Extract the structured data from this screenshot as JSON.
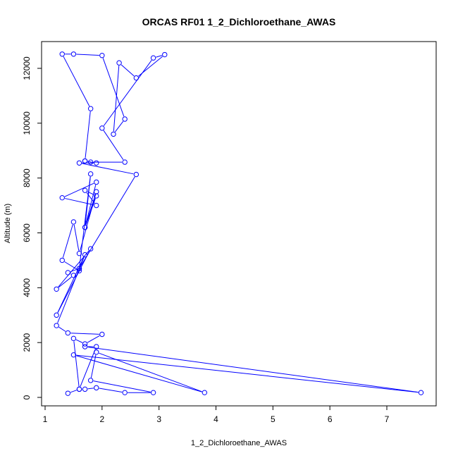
{
  "chart_data": {
    "type": "line",
    "title": "ORCAS RF01 1_2_Dichloroethane_AWAS",
    "xlabel": "1_2_Dichloroethane_AWAS",
    "ylabel": "Altitude (m)",
    "xlim": [
      1,
      7.6
    ],
    "ylim": [
      0,
      12500
    ],
    "xticks": [
      1,
      2,
      3,
      4,
      5,
      6,
      7
    ],
    "yticks": [
      0,
      2000,
      4000,
      6000,
      8000,
      10000,
      12000
    ],
    "grid": false,
    "legend": "none",
    "colors": {
      "series": "#0000ff",
      "axis": "#000000",
      "background": "#ffffff"
    },
    "series": [
      {
        "marker": "open-circle",
        "points": [
          [
            1.4,
            150
          ],
          [
            1.6,
            300
          ],
          [
            1.7,
            300
          ],
          [
            1.9,
            350
          ],
          [
            2.4,
            175
          ],
          [
            2.9,
            175
          ],
          [
            1.8,
            620
          ],
          [
            1.9,
            1650
          ],
          [
            3.8,
            175
          ],
          [
            1.5,
            1550
          ],
          [
            7.6,
            175
          ],
          [
            1.7,
            1850
          ],
          [
            1.9,
            1850
          ],
          [
            1.6,
            300
          ],
          [
            1.5,
            2150
          ],
          [
            1.7,
            1950
          ],
          [
            2.0,
            2300
          ],
          [
            1.4,
            2350
          ],
          [
            1.2,
            2620
          ],
          [
            1.7,
            5200
          ],
          [
            1.2,
            3000
          ],
          [
            1.8,
            5420
          ],
          [
            1.2,
            3950
          ],
          [
            1.5,
            4450
          ],
          [
            1.4,
            4550
          ],
          [
            1.6,
            4700
          ],
          [
            1.6,
            4620
          ],
          [
            1.3,
            5000
          ],
          [
            1.5,
            6400
          ],
          [
            1.6,
            5250
          ],
          [
            1.9,
            7500
          ],
          [
            1.7,
            6200
          ],
          [
            1.9,
            7350
          ],
          [
            1.7,
            7550
          ],
          [
            1.9,
            7000
          ],
          [
            1.3,
            7280
          ],
          [
            1.9,
            7850
          ],
          [
            1.7,
            6200
          ],
          [
            1.8,
            8150
          ],
          [
            1.6,
            4700
          ],
          [
            2.6,
            8130
          ],
          [
            1.6,
            8550
          ],
          [
            1.9,
            8550
          ],
          [
            1.7,
            8620
          ],
          [
            1.8,
            8580
          ],
          [
            2.4,
            8580
          ],
          [
            2.0,
            9820
          ],
          [
            2.9,
            12380
          ],
          [
            3.1,
            12500
          ],
          [
            2.6,
            11650
          ],
          [
            2.3,
            12200
          ],
          [
            2.2,
            9600
          ],
          [
            2.4,
            10150
          ],
          [
            2.0,
            12470
          ],
          [
            1.5,
            12520
          ],
          [
            1.3,
            12520
          ],
          [
            1.8,
            10530
          ],
          [
            1.7,
            8620
          ]
        ]
      }
    ]
  }
}
